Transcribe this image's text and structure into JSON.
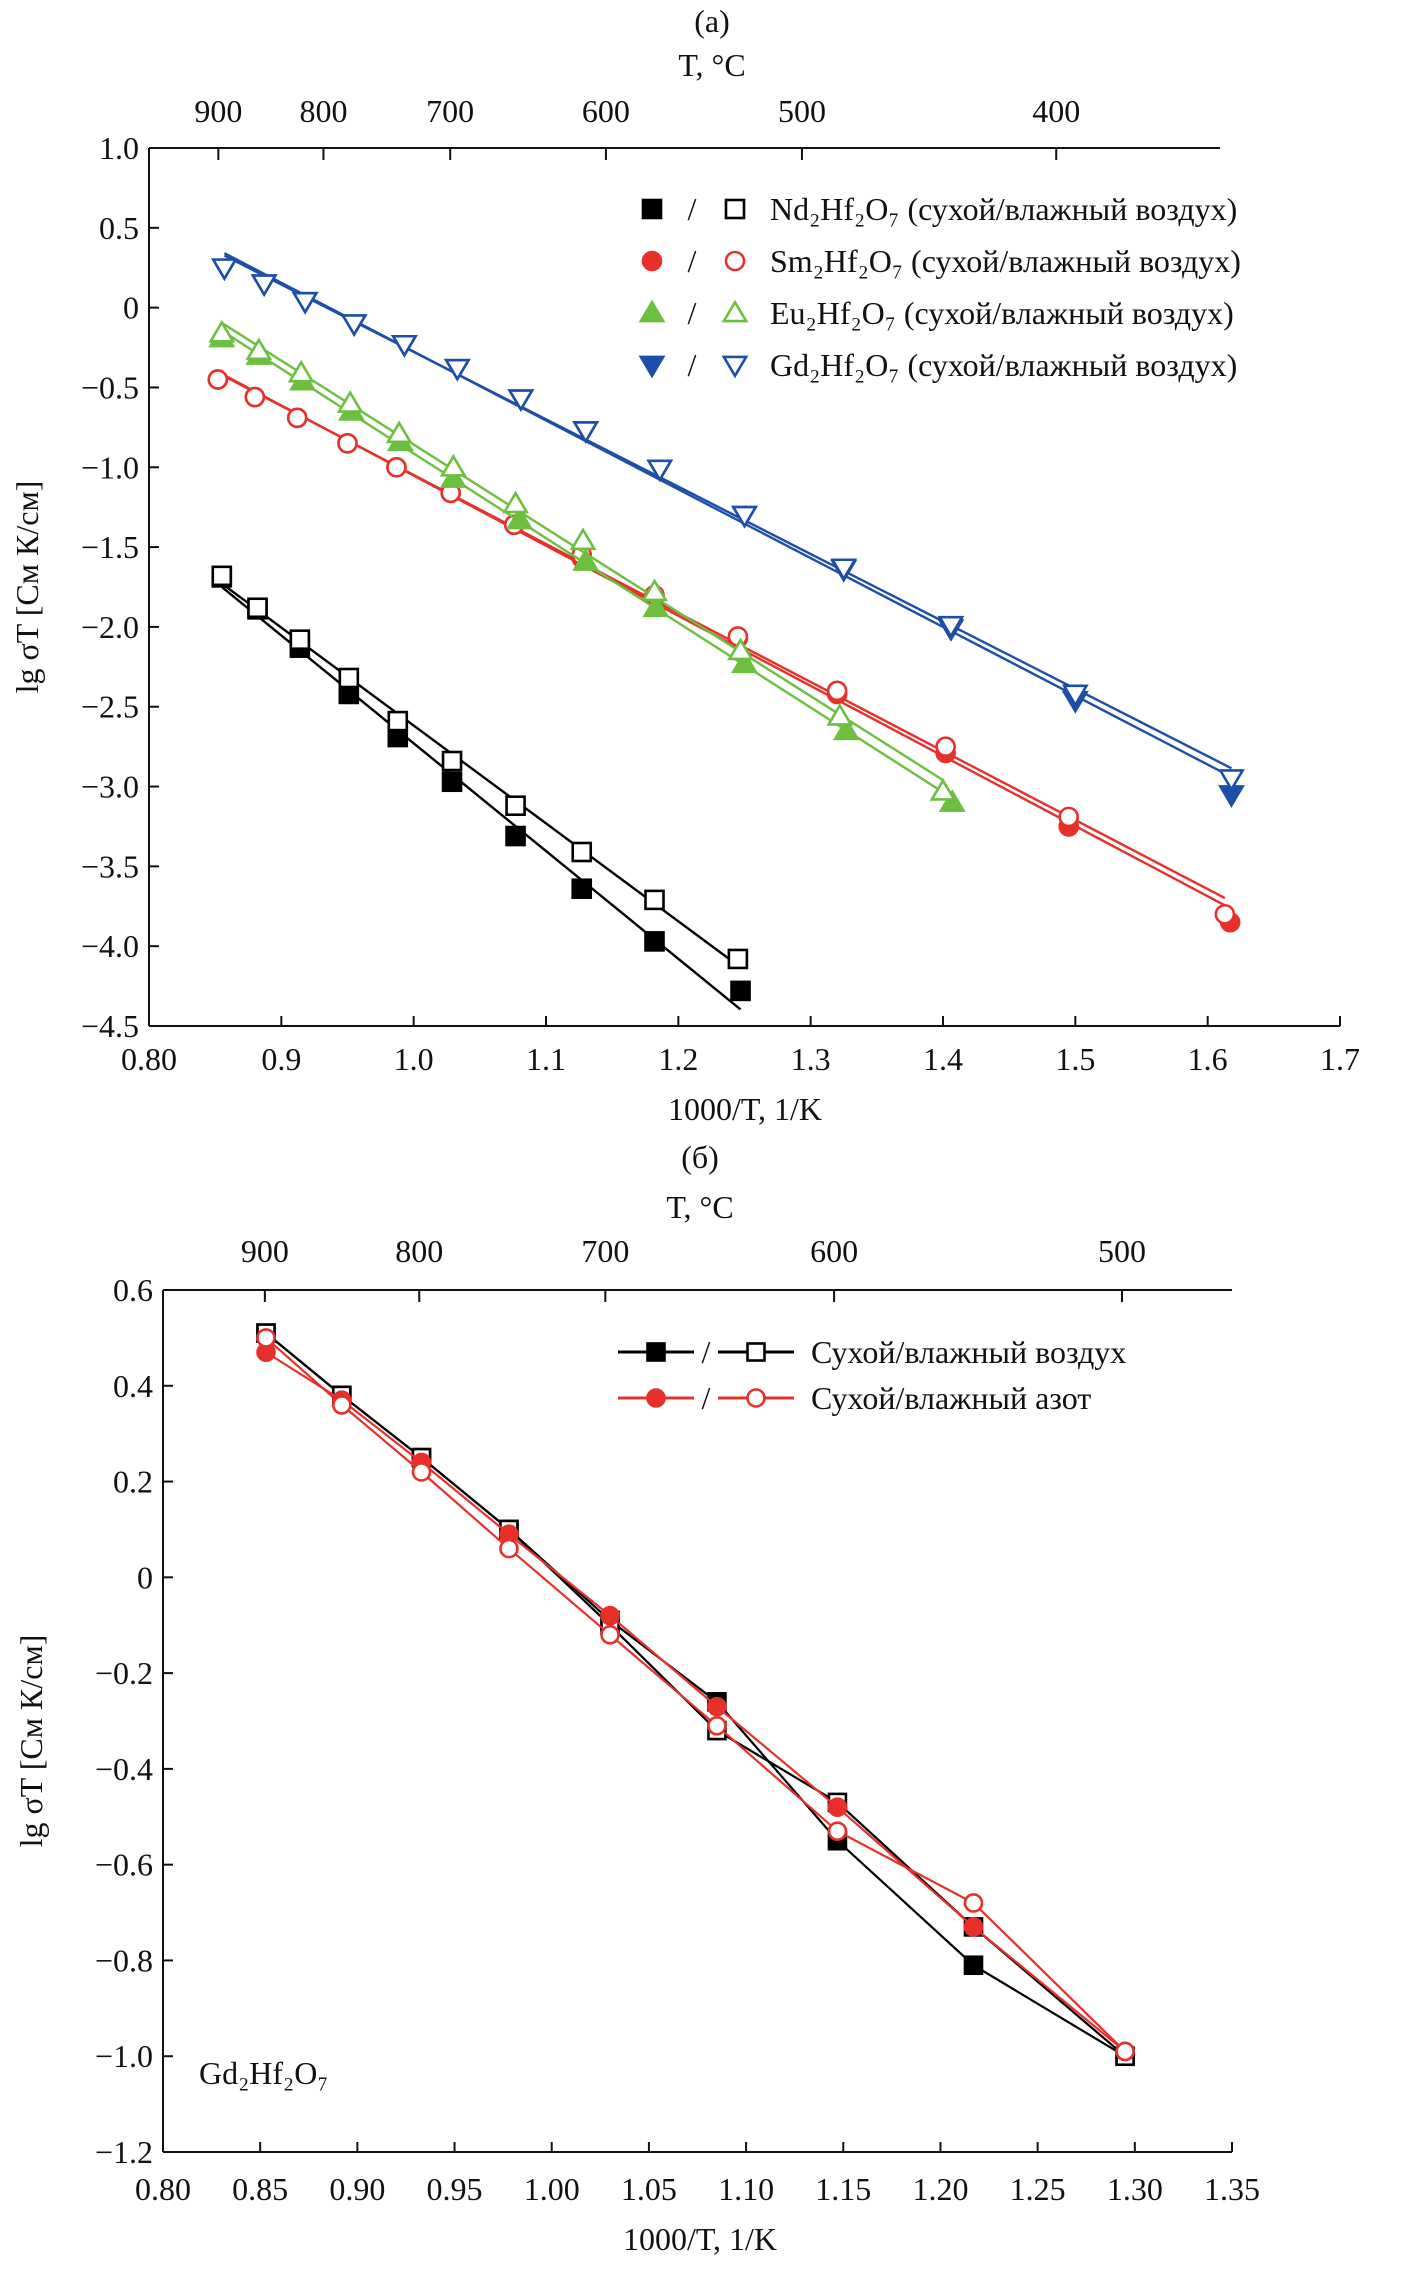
{
  "chart_data": [
    {
      "panel_label": "(a)",
      "type": "scatter",
      "xlabel": "1000/T, 1/K",
      "ylabel": "lg σT [См К/см]",
      "top_axis_label": "T, °C",
      "top_ticks_celsius": [
        900,
        800,
        700,
        600,
        500,
        400
      ],
      "xlim": [
        0.8,
        1.7
      ],
      "ylim": [
        -4.5,
        1.0
      ],
      "xticks": [
        0.8,
        0.9,
        1.0,
        1.1,
        1.2,
        1.3,
        1.4,
        1.5,
        1.6,
        1.7
      ],
      "xtick_labels": [
        "0.80",
        "0.9",
        "1.0",
        "1.1",
        "1.2",
        "1.3",
        "1.4",
        "1.5",
        "1.6",
        "1.7"
      ],
      "yticks": [
        1.0,
        0.5,
        0,
        -0.5,
        -1.0,
        -1.5,
        -2.0,
        -2.5,
        -3.0,
        -3.5,
        -4.0,
        -4.5
      ],
      "ytick_labels": [
        "1.0",
        "0.5",
        "0",
        "−0.5",
        "−1.0",
        "−1.5",
        "−2.0",
        "−2.5",
        "−3.0",
        "−3.5",
        "−4.0",
        "−4.5"
      ],
      "fit_lines": true,
      "grid": false,
      "legend_position": "top-right",
      "legend": [
        {
          "label": "Nd₂Hf₂O₇ (сухой/влажный воздух)",
          "color": "#000000",
          "marker": "square"
        },
        {
          "label": "Sm₂Hf₂O₇ (сухой/влажный воздух)",
          "color": "#e8302a",
          "marker": "circle"
        },
        {
          "label": "Eu₂Hf₂O₇ (сухой/влажный воздух)",
          "color": "#6cbf3f",
          "marker": "triangle-up"
        },
        {
          "label": "Gd₂Hf₂O₇ (сухой/влажный воздух)",
          "color": "#1c4fa8",
          "marker": "triangle-down"
        }
      ],
      "legend_separator": "/",
      "series": [
        {
          "legend": 0,
          "filled": true,
          "x": [
            0.855,
            0.882,
            0.914,
            0.951,
            0.988,
            1.029,
            1.077,
            1.127,
            1.182,
            1.247
          ],
          "y": [
            -1.69,
            -1.89,
            -2.13,
            -2.42,
            -2.69,
            -2.97,
            -3.31,
            -3.64,
            -3.97,
            -4.28
          ]
        },
        {
          "legend": 0,
          "filled": false,
          "x": [
            0.855,
            0.882,
            0.914,
            0.951,
            0.988,
            1.029,
            1.077,
            1.127,
            1.182,
            1.245
          ],
          "y": [
            -1.68,
            -1.88,
            -2.08,
            -2.32,
            -2.59,
            -2.84,
            -3.12,
            -3.41,
            -3.71,
            -4.08
          ]
        },
        {
          "legend": 1,
          "filled": true,
          "x": [
            0.852,
            0.88,
            0.912,
            0.95,
            0.987,
            1.028,
            1.076,
            1.127,
            1.182,
            1.245,
            1.32,
            1.402,
            1.495,
            1.617
          ],
          "y": [
            -0.45,
            -0.56,
            -0.69,
            -0.85,
            -1.0,
            -1.16,
            -1.36,
            -1.57,
            -1.81,
            -2.07,
            -2.42,
            -2.79,
            -3.25,
            -3.85
          ]
        },
        {
          "legend": 1,
          "filled": false,
          "x": [
            0.852,
            0.88,
            0.912,
            0.95,
            0.987,
            1.028,
            1.076,
            1.127,
            1.182,
            1.245,
            1.32,
            1.402,
            1.495,
            1.613
          ],
          "y": [
            -0.45,
            -0.56,
            -0.69,
            -0.85,
            -1.0,
            -1.16,
            -1.36,
            -1.55,
            -1.8,
            -2.06,
            -2.4,
            -2.75,
            -3.19,
            -3.8
          ]
        },
        {
          "legend": 2,
          "filled": true,
          "x": [
            0.855,
            0.883,
            0.916,
            0.953,
            0.99,
            1.03,
            1.08,
            1.13,
            1.183,
            1.25,
            1.327,
            1.407
          ],
          "y": [
            -0.19,
            -0.3,
            -0.46,
            -0.65,
            -0.84,
            -1.07,
            -1.33,
            -1.59,
            -1.88,
            -2.23,
            -2.65,
            -3.1
          ]
        },
        {
          "legend": 2,
          "filled": false,
          "x": [
            0.855,
            0.883,
            0.915,
            0.952,
            0.989,
            1.03,
            1.077,
            1.128,
            1.182,
            1.247,
            1.322,
            1.4
          ],
          "y": [
            -0.16,
            -0.27,
            -0.41,
            -0.6,
            -0.79,
            -1.0,
            -1.23,
            -1.46,
            -1.78,
            -2.15,
            -2.56,
            -3.03
          ]
        },
        {
          "legend": 3,
          "filled": true,
          "x": [
            0.857,
            0.887,
            0.918,
            0.955,
            0.993,
            1.033,
            1.081,
            1.13,
            1.186,
            1.25,
            1.325,
            1.406,
            1.5,
            1.618
          ],
          "y": [
            0.25,
            0.15,
            0.04,
            -0.1,
            -0.23,
            -0.38,
            -0.57,
            -0.77,
            -1.01,
            -1.3,
            -1.64,
            -2.01,
            -2.46,
            -3.05
          ]
        },
        {
          "legend": 3,
          "filled": false,
          "x": [
            0.857,
            0.887,
            0.918,
            0.955,
            0.993,
            1.033,
            1.081,
            1.13,
            1.186,
            1.25,
            1.325,
            1.406,
            1.5,
            1.618
          ],
          "y": [
            0.25,
            0.15,
            0.04,
            -0.1,
            -0.23,
            -0.38,
            -0.57,
            -0.77,
            -1.01,
            -1.3,
            -1.63,
            -1.99,
            -2.42,
            -2.95
          ]
        }
      ]
    },
    {
      "panel_label": "(б)",
      "type": "line",
      "xlabel": "1000/T, 1/K",
      "ylabel": "lg σT [См К/см]",
      "top_axis_label": "T, °C",
      "top_ticks_celsius": [
        900,
        800,
        700,
        600,
        500
      ],
      "xlim": [
        0.8,
        1.35
      ],
      "ylim": [
        -1.2,
        0.6
      ],
      "xticks": [
        0.8,
        0.85,
        0.9,
        0.95,
        1.0,
        1.05,
        1.1,
        1.15,
        1.2,
        1.25,
        1.3,
        1.35
      ],
      "xtick_labels": [
        "0.80",
        "0.85",
        "0.90",
        "0.95",
        "1.00",
        "1.05",
        "1.10",
        "1.15",
        "1.20",
        "1.25",
        "1.30",
        "1.35"
      ],
      "yticks": [
        0.6,
        0.4,
        0.2,
        0,
        -0.2,
        -0.4,
        -0.6,
        -0.8,
        -1.0,
        -1.2
      ],
      "ytick_labels": [
        "0.6",
        "0.4",
        "0.2",
        "0",
        "−0.2",
        "−0.4",
        "−0.6",
        "−0.8",
        "−1.0",
        "−1.2"
      ],
      "fit_lines": false,
      "grid": false,
      "annotation": "Gd₂Hf₂O₇",
      "legend_position": "top-right",
      "legend": [
        {
          "label": "Сухой/влажный воздух",
          "color": "#000000",
          "marker": "square"
        },
        {
          "label": "Сухой/влажный азот",
          "color": "#e8302a",
          "marker": "circle"
        }
      ],
      "legend_separator": "/",
      "series": [
        {
          "legend": 0,
          "filled": true,
          "x": [
            0.853,
            0.892,
            0.933,
            0.978,
            1.03,
            1.085,
            1.147,
            1.217,
            1.295
          ],
          "y": [
            0.51,
            0.38,
            0.25,
            0.1,
            -0.09,
            -0.26,
            -0.55,
            -0.81,
            -1.0
          ]
        },
        {
          "legend": 0,
          "filled": false,
          "x": [
            0.853,
            0.892,
            0.933,
            0.978,
            1.03,
            1.085,
            1.147,
            1.217,
            1.295
          ],
          "y": [
            0.51,
            0.38,
            0.25,
            0.1,
            -0.1,
            -0.32,
            -0.47,
            -0.73,
            -1.0
          ]
        },
        {
          "legend": 1,
          "filled": true,
          "x": [
            0.853,
            0.892,
            0.933,
            0.978,
            1.03,
            1.085,
            1.147,
            1.217,
            1.295
          ],
          "y": [
            0.47,
            0.37,
            0.24,
            0.09,
            -0.08,
            -0.27,
            -0.48,
            -0.73,
            -0.99
          ]
        },
        {
          "legend": 1,
          "filled": false,
          "x": [
            0.853,
            0.892,
            0.933,
            0.978,
            1.03,
            1.085,
            1.147,
            1.217,
            1.295
          ],
          "y": [
            0.5,
            0.36,
            0.22,
            0.06,
            -0.12,
            -0.31,
            -0.53,
            -0.68,
            -0.99
          ]
        }
      ]
    }
  ]
}
